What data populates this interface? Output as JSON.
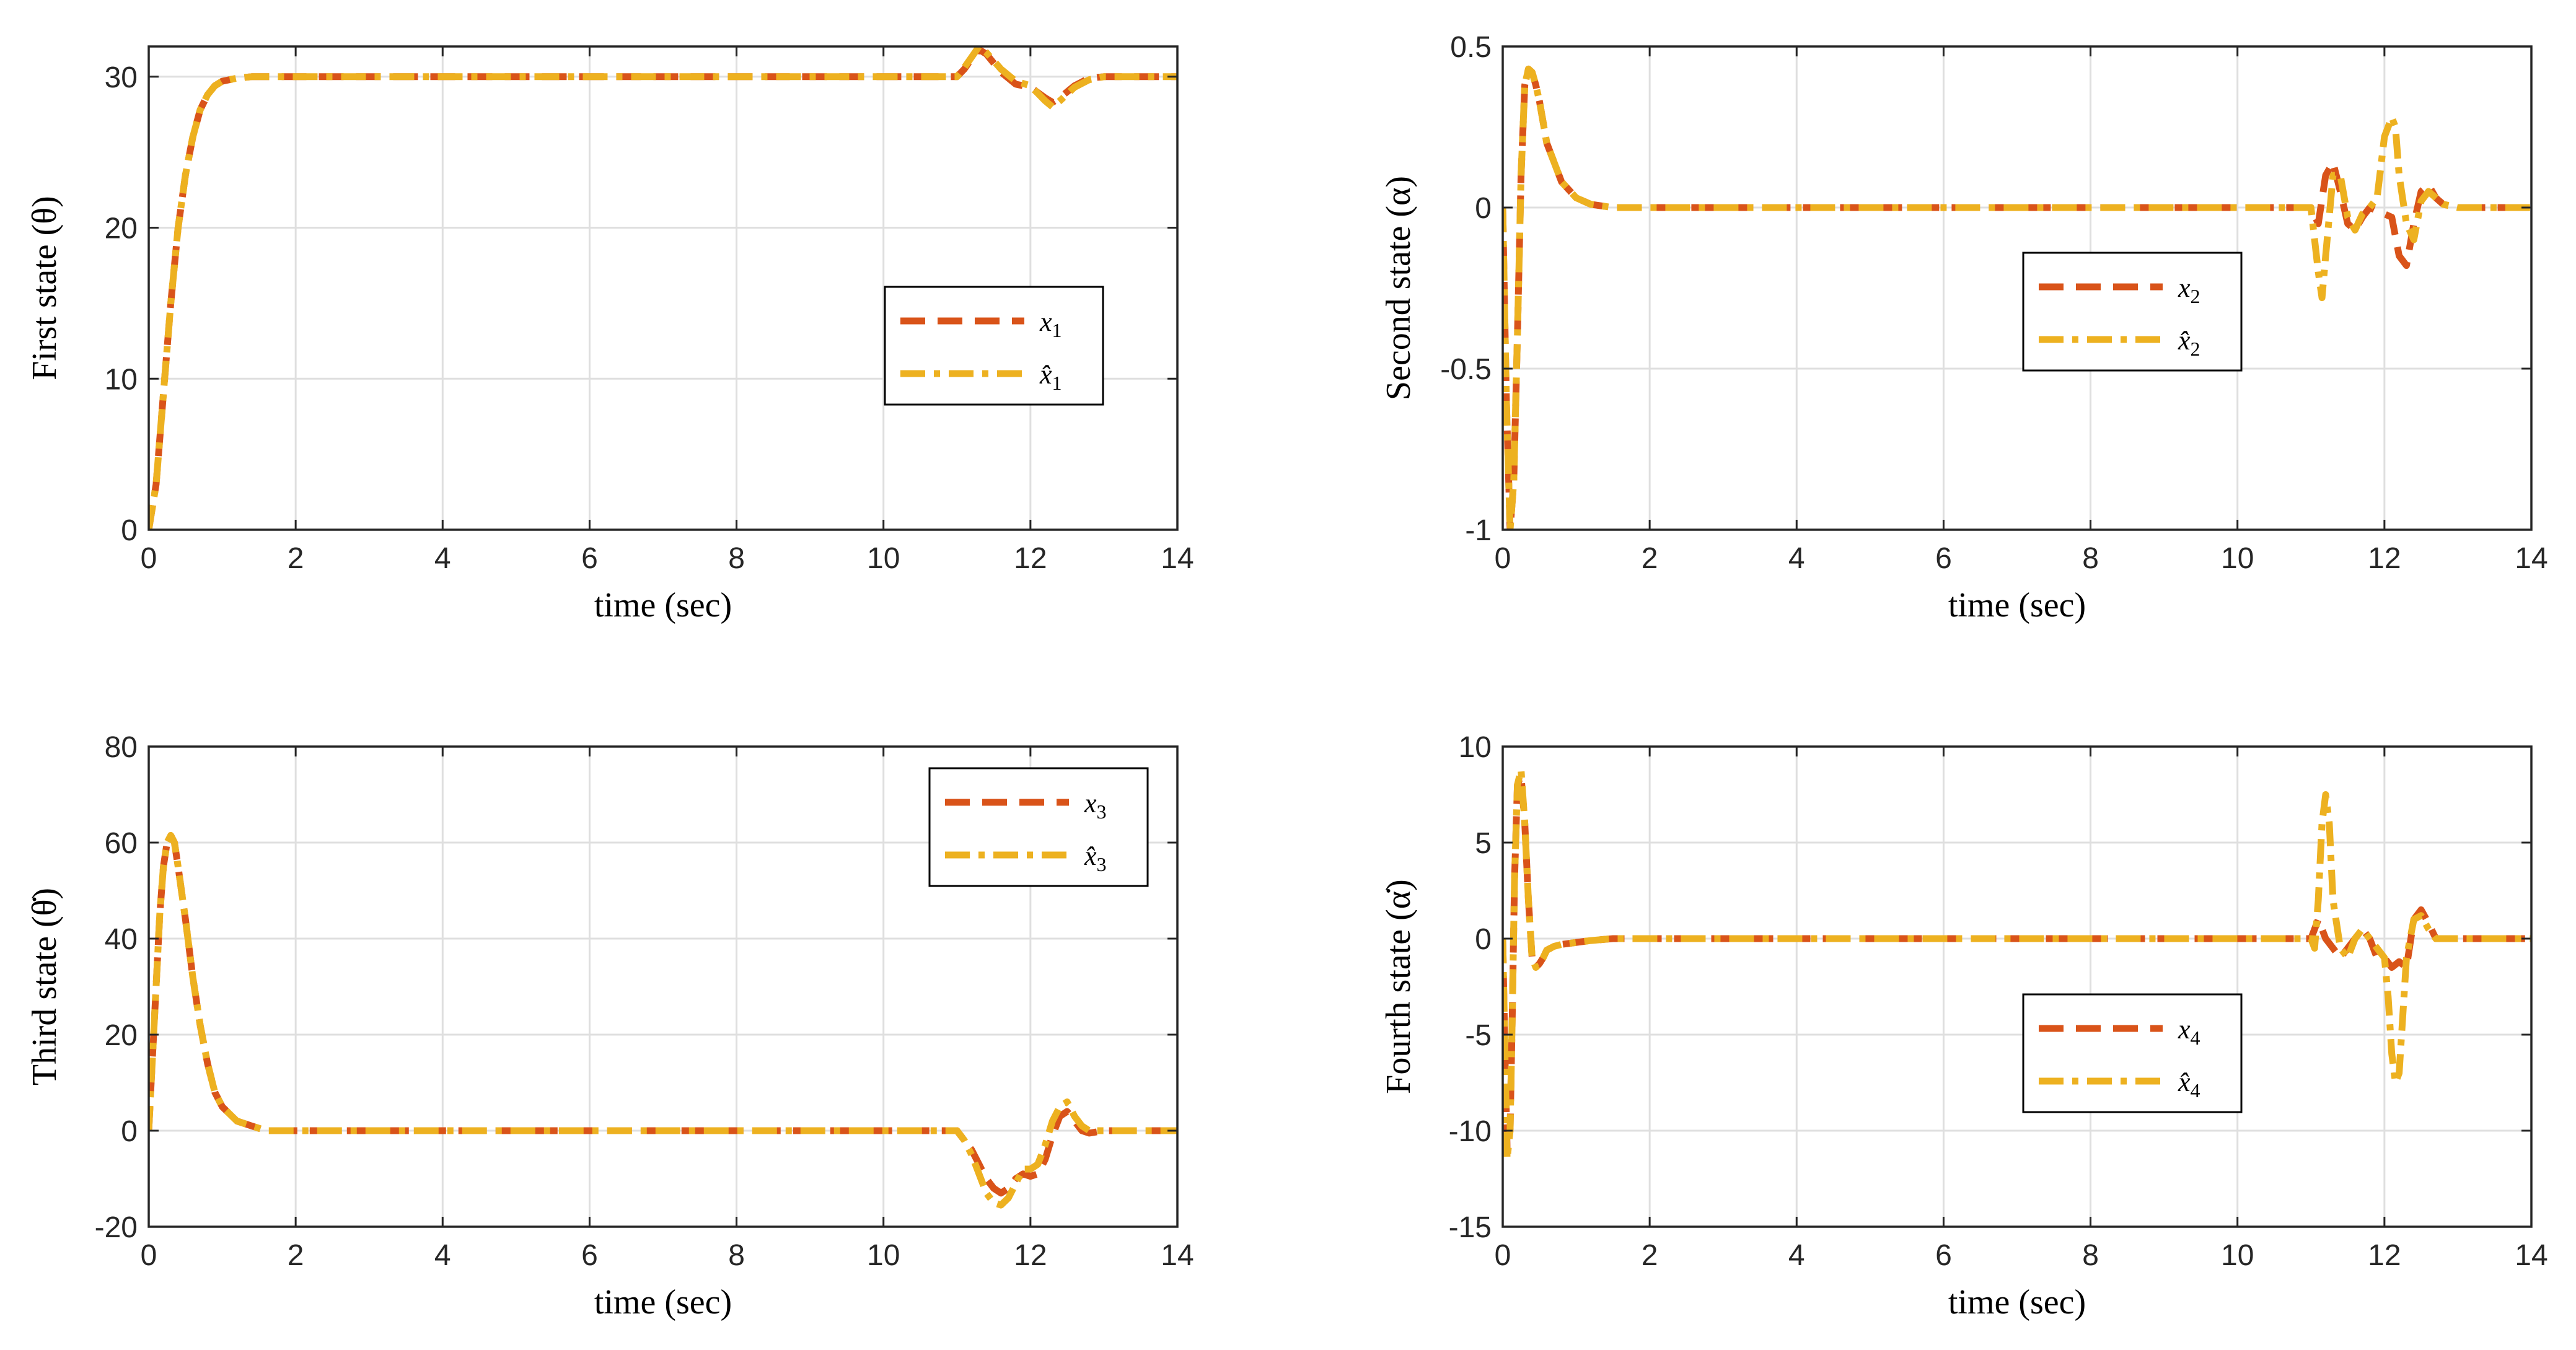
{
  "colors": {
    "actual": "#D95319",
    "estimate": "#EDB120",
    "grid": "#dfdfdf",
    "axes": "#262626"
  },
  "chart_data": [
    {
      "type": "line",
      "name": "first-state",
      "xlabel": "time (sec)",
      "ylabel": "First state   (θ)",
      "xlim": [
        0,
        14
      ],
      "ylim": [
        0,
        32
      ],
      "xticks": [
        0,
        2,
        4,
        6,
        8,
        10,
        12,
        14
      ],
      "yticks": [
        0,
        10,
        20,
        30
      ],
      "xtick_labels": [
        "0",
        "2",
        "4",
        "6",
        "8",
        "10",
        "12",
        "14"
      ],
      "ytick_labels": [
        "0",
        "10",
        "20",
        "30"
      ],
      "legend": {
        "location": "right-center",
        "entries": [
          {
            "symbol": "x",
            "sub": "1"
          },
          {
            "symbol": "x̂",
            "sub": "1"
          }
        ]
      },
      "series": [
        {
          "name": "x1",
          "style": "dashed",
          "x": [
            0,
            0.1,
            0.2,
            0.3,
            0.4,
            0.5,
            0.6,
            0.7,
            0.8,
            0.9,
            1.0,
            1.2,
            1.4,
            1.6,
            2,
            4,
            6,
            8,
            10,
            11,
            11.1,
            11.2,
            11.3,
            11.4,
            11.6,
            11.8,
            12.0,
            12.2,
            12.3,
            12.4,
            12.6,
            12.8,
            13,
            14
          ],
          "y": [
            0,
            3,
            9,
            15,
            20,
            23.5,
            26,
            27.8,
            28.8,
            29.4,
            29.7,
            29.9,
            30,
            30,
            30,
            30,
            30,
            30,
            30,
            30,
            30.5,
            31.2,
            31.8,
            31.5,
            30.3,
            29.5,
            29.3,
            28.6,
            28.3,
            28.6,
            29.4,
            29.9,
            30,
            30
          ]
        },
        {
          "name": "x1_hat",
          "style": "dashdot",
          "x": [
            0,
            0.1,
            0.2,
            0.3,
            0.4,
            0.5,
            0.6,
            0.7,
            0.8,
            0.9,
            1.0,
            1.2,
            1.4,
            1.6,
            2,
            4,
            6,
            8,
            10,
            11,
            11.1,
            11.2,
            11.3,
            11.4,
            11.6,
            11.8,
            12.0,
            12.2,
            12.3,
            12.4,
            12.6,
            12.8,
            13,
            14
          ],
          "y": [
            0,
            3,
            9,
            15,
            20,
            23.5,
            26,
            27.8,
            28.8,
            29.4,
            29.7,
            29.9,
            30,
            30,
            30,
            30,
            30,
            30,
            30,
            30,
            30.6,
            31.3,
            32,
            31.6,
            30.5,
            29.7,
            29.4,
            28.4,
            28.0,
            28.4,
            29.3,
            29.8,
            30,
            30
          ]
        }
      ]
    },
    {
      "type": "line",
      "name": "second-state",
      "xlabel": "time (sec)",
      "ylabel": "Second state   (α)",
      "xlim": [
        0,
        14
      ],
      "ylim": [
        -1,
        0.5
      ],
      "xticks": [
        0,
        2,
        4,
        6,
        8,
        10,
        12,
        14
      ],
      "yticks": [
        -1,
        -0.5,
        0,
        0.5
      ],
      "xtick_labels": [
        "0",
        "2",
        "4",
        "6",
        "8",
        "10",
        "12",
        "14"
      ],
      "ytick_labels": [
        "-1",
        "-0.5",
        "0",
        "0.5"
      ],
      "legend": {
        "location": "right-center",
        "entries": [
          {
            "symbol": "x",
            "sub": "2"
          },
          {
            "symbol": "x̂",
            "sub": "2"
          }
        ]
      },
      "series": [
        {
          "name": "x2",
          "style": "dashed",
          "x": [
            0,
            0.05,
            0.1,
            0.15,
            0.2,
            0.25,
            0.3,
            0.35,
            0.4,
            0.45,
            0.5,
            0.6,
            0.8,
            1.0,
            1.2,
            1.5,
            2,
            4,
            6,
            8,
            10,
            11,
            11.1,
            11.2,
            11.3,
            11.4,
            11.5,
            11.6,
            11.7,
            11.8,
            12.0,
            12.1,
            12.2,
            12.3,
            12.4,
            12.5,
            12.6,
            12.7,
            12.8,
            13,
            14
          ],
          "y": [
            0,
            -0.6,
            -1.0,
            -0.85,
            -0.4,
            0.1,
            0.38,
            0.43,
            0.42,
            0.38,
            0.33,
            0.2,
            0.08,
            0.03,
            0.01,
            0,
            0,
            0,
            0,
            0,
            0,
            0,
            -0.05,
            0.1,
            0.14,
            0.05,
            -0.05,
            -0.07,
            -0.03,
            0.0,
            -0.02,
            -0.03,
            -0.15,
            -0.18,
            -0.05,
            0.05,
            0.07,
            0.03,
            0.01,
            0,
            0
          ]
        },
        {
          "name": "x2_hat",
          "style": "dashdot",
          "x": [
            0,
            0.05,
            0.1,
            0.15,
            0.2,
            0.25,
            0.3,
            0.35,
            0.4,
            0.45,
            0.5,
            0.6,
            0.8,
            1.0,
            1.2,
            1.5,
            2,
            4,
            6,
            8,
            10,
            11,
            11.1,
            11.15,
            11.2,
            11.3,
            11.4,
            11.5,
            11.6,
            11.7,
            11.8,
            11.9,
            12.0,
            12.1,
            12.15,
            12.2,
            12.3,
            12.4,
            12.5,
            12.6,
            12.7,
            12.8,
            13,
            14
          ],
          "y": [
            0,
            -0.6,
            -1.0,
            -0.85,
            -0.4,
            0.1,
            0.38,
            0.43,
            0.42,
            0.38,
            0.33,
            0.2,
            0.08,
            0.03,
            0.01,
            0,
            0,
            0,
            0,
            0,
            0,
            0,
            -0.2,
            -0.28,
            -0.15,
            0.1,
            0.1,
            -0.03,
            -0.07,
            -0.02,
            0.0,
            0.03,
            0.22,
            0.28,
            0.25,
            0.1,
            -0.05,
            -0.1,
            0.02,
            0.05,
            0.03,
            0.01,
            0,
            0
          ]
        }
      ]
    },
    {
      "type": "line",
      "name": "third-state",
      "xlabel": "time (sec)",
      "ylabel": "Third state   (θ̇)",
      "xlim": [
        0,
        14
      ],
      "ylim": [
        -20,
        80
      ],
      "xticks": [
        0,
        2,
        4,
        6,
        8,
        10,
        12,
        14
      ],
      "yticks": [
        -20,
        0,
        20,
        40,
        60,
        80
      ],
      "xtick_labels": [
        "0",
        "2",
        "4",
        "6",
        "8",
        "10",
        "12",
        "14"
      ],
      "ytick_labels": [
        "-20",
        "0",
        "20",
        "40",
        "60",
        "80"
      ],
      "legend": {
        "location": "top-right",
        "entries": [
          {
            "symbol": "x",
            "sub": "3"
          },
          {
            "symbol": "x̂",
            "sub": "3"
          }
        ]
      },
      "series": [
        {
          "name": "x3",
          "style": "dashed",
          "x": [
            0,
            0.05,
            0.1,
            0.15,
            0.2,
            0.25,
            0.3,
            0.35,
            0.4,
            0.5,
            0.6,
            0.7,
            0.8,
            0.9,
            1.0,
            1.2,
            1.4,
            1.6,
            2,
            4,
            6,
            8,
            10,
            11,
            11.1,
            11.2,
            11.3,
            11.4,
            11.5,
            11.6,
            11.7,
            11.8,
            11.9,
            12.0,
            12.1,
            12.2,
            12.3,
            12.4,
            12.5,
            12.6,
            12.7,
            12.8,
            13,
            14
          ],
          "y": [
            0,
            15,
            30,
            45,
            55,
            60,
            61.5,
            60,
            55,
            44,
            32,
            22,
            14,
            8,
            5,
            2,
            1,
            0,
            0,
            0,
            0,
            0,
            0,
            0,
            -2,
            -4,
            -7,
            -10,
            -12,
            -13,
            -12,
            -10,
            -9,
            -9.5,
            -9,
            -6,
            -1,
            3,
            4,
            2,
            0,
            -0.5,
            0,
            0
          ]
        },
        {
          "name": "x3_hat",
          "style": "dashdot",
          "x": [
            0,
            0.05,
            0.1,
            0.15,
            0.2,
            0.25,
            0.3,
            0.35,
            0.4,
            0.5,
            0.6,
            0.7,
            0.8,
            0.9,
            1.0,
            1.2,
            1.4,
            1.6,
            2,
            4,
            6,
            8,
            10,
            11,
            11.1,
            11.2,
            11.3,
            11.4,
            11.5,
            11.6,
            11.7,
            11.8,
            11.9,
            12.0,
            12.1,
            12.2,
            12.3,
            12.4,
            12.5,
            12.6,
            12.7,
            12.8,
            13,
            14
          ],
          "y": [
            0,
            15,
            30,
            45,
            55,
            60,
            61.5,
            60,
            55,
            44,
            32,
            22,
            14,
            8,
            5,
            2,
            1,
            0,
            0,
            0,
            0,
            0,
            0,
            0,
            -2,
            -5,
            -9,
            -13,
            -15,
            -15.5,
            -14,
            -11,
            -8,
            -8,
            -7,
            -3,
            2,
            5,
            6,
            3,
            1,
            0,
            0,
            0
          ]
        }
      ]
    },
    {
      "type": "line",
      "name": "fourth-state",
      "xlabel": "time (sec)",
      "ylabel": "Fourth state   (α̇)",
      "xlim": [
        0,
        14
      ],
      "ylim": [
        -15,
        10
      ],
      "xticks": [
        0,
        2,
        4,
        6,
        8,
        10,
        12,
        14
      ],
      "yticks": [
        -15,
        -10,
        -5,
        0,
        5,
        10
      ],
      "xtick_labels": [
        "0",
        "2",
        "4",
        "6",
        "8",
        "10",
        "12",
        "14"
      ],
      "ytick_labels": [
        "-15",
        "-10",
        "-5",
        "0",
        "5",
        "10"
      ],
      "legend": {
        "location": "right-center",
        "entries": [
          {
            "symbol": "x",
            "sub": "4"
          },
          {
            "symbol": "x̂",
            "sub": "4"
          }
        ]
      },
      "series": [
        {
          "name": "x4",
          "style": "dashed",
          "x": [
            0,
            0.03,
            0.06,
            0.1,
            0.13,
            0.16,
            0.2,
            0.25,
            0.3,
            0.35,
            0.4,
            0.45,
            0.5,
            0.55,
            0.6,
            0.7,
            0.8,
            1.0,
            1.2,
            1.5,
            2,
            4,
            6,
            8,
            10,
            11,
            11.05,
            11.1,
            11.15,
            11.2,
            11.3,
            11.4,
            11.5,
            11.6,
            11.7,
            11.8,
            11.9,
            12.0,
            12.1,
            12.2,
            12.3,
            12.4,
            12.5,
            12.6,
            12.7,
            13,
            14
          ],
          "y": [
            0,
            -6,
            -11,
            -10,
            -4,
            3,
            8,
            8.5,
            6,
            2,
            -1,
            -1.5,
            -1.3,
            -1,
            -0.6,
            -0.4,
            -0.3,
            -0.2,
            -0.1,
            0,
            0,
            0,
            0,
            0,
            0,
            0,
            0.5,
            1,
            0.5,
            0,
            -0.5,
            -1,
            -0.5,
            0,
            0.5,
            0,
            -1,
            -1,
            -1.5,
            -1.2,
            -1.5,
            1,
            1.5,
            0.8,
            0,
            0,
            0
          ]
        },
        {
          "name": "x4_hat",
          "style": "dashdot",
          "x": [
            0,
            0.03,
            0.06,
            0.1,
            0.13,
            0.16,
            0.2,
            0.25,
            0.3,
            0.35,
            0.4,
            0.45,
            0.5,
            0.55,
            0.6,
            0.7,
            0.8,
            1.0,
            1.2,
            1.5,
            2,
            4,
            6,
            8,
            10,
            11,
            11.05,
            11.1,
            11.15,
            11.2,
            11.25,
            11.3,
            11.4,
            11.5,
            11.6,
            11.7,
            11.8,
            11.9,
            12.0,
            12.05,
            12.1,
            12.15,
            12.2,
            12.25,
            12.3,
            12.4,
            12.5,
            12.6,
            12.7,
            13,
            14
          ],
          "y": [
            0,
            -6,
            -11.5,
            -10,
            -4,
            3,
            8,
            8.8,
            6,
            2,
            -1,
            -1.5,
            -1.3,
            -1,
            -0.6,
            -0.4,
            -0.3,
            -0.2,
            -0.1,
            0,
            0,
            0,
            0,
            0,
            0,
            0,
            -0.5,
            2,
            6,
            7.5,
            6,
            2,
            -0.5,
            -1,
            0,
            0.5,
            0,
            -0.5,
            -1,
            -3,
            -6,
            -7.5,
            -7,
            -4,
            -1,
            1,
            1.2,
            0.5,
            0,
            0,
            0
          ]
        }
      ]
    }
  ]
}
